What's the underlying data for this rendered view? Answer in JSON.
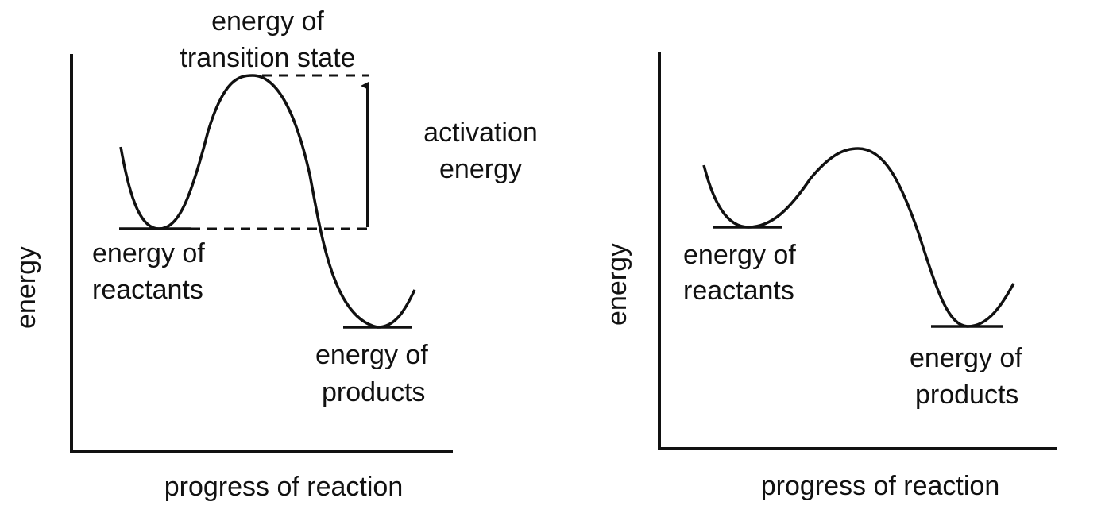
{
  "diagrams": [
    {
      "y_axis_label": "energy",
      "x_axis_label": "progress of reaction",
      "transition_label": [
        "energy of",
        "transition state"
      ],
      "activation_label": [
        "activation",
        "energy"
      ],
      "reactants_label": [
        "energy of",
        "reactants"
      ],
      "products_label": [
        "energy of",
        "products"
      ]
    },
    {
      "y_axis_label": "energy",
      "x_axis_label": "progress of reaction",
      "reactants_label": [
        "energy of",
        "reactants"
      ],
      "products_label": [
        "energy of",
        "products"
      ]
    }
  ]
}
